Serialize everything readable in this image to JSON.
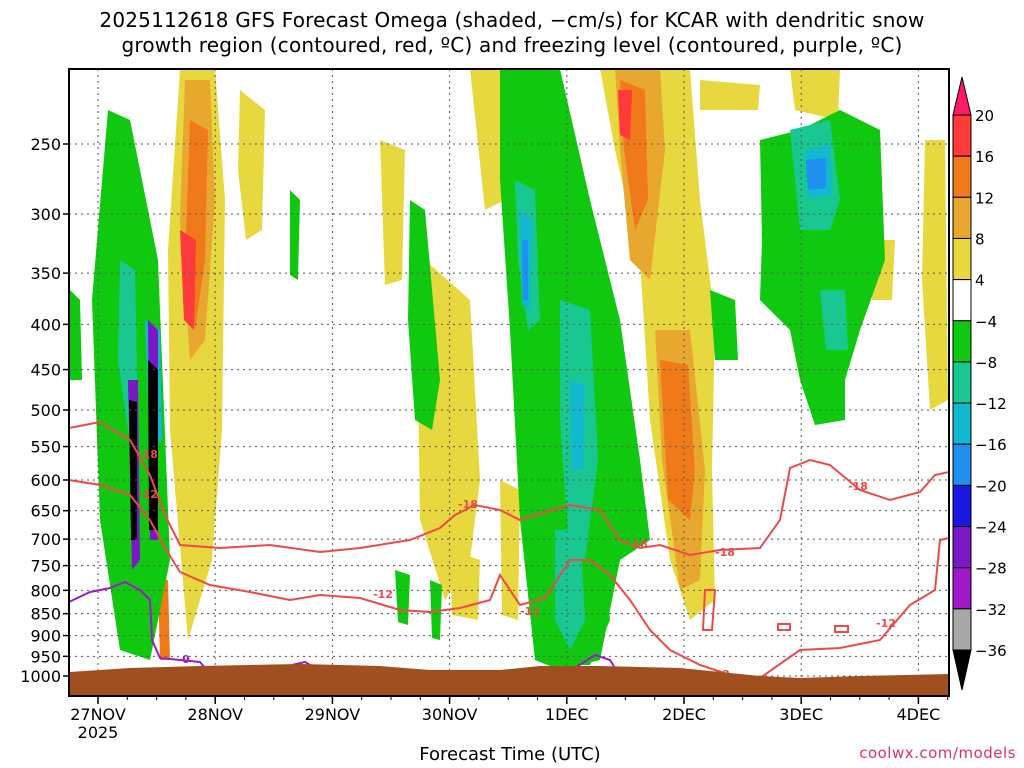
{
  "chart_data": {
    "type": "heatmap",
    "title_line1": "2025112618 GFS Forecast Omega (shaded, −cm/s) for KCAR with dendritic snow",
    "title_line2": "growth region (contoured, red, ºC) and freezing level (contoured, purple, ºC)",
    "xlabel": "Forecast Time (UTC)",
    "ylabel": "",
    "credit": "coolwx.com/models",
    "x_ticks": [
      "27NOV",
      "28NOV",
      "29NOV",
      "30NOV",
      "1DEC",
      "2DEC",
      "3DEC",
      "4DEC"
    ],
    "x_year": "2025",
    "y_ticks": [
      250,
      300,
      350,
      400,
      450,
      500,
      550,
      600,
      650,
      700,
      750,
      800,
      850,
      900,
      950,
      1000
    ],
    "y_range_hPa": [
      200,
      1030
    ],
    "y_log_scale": true,
    "grid": true,
    "colorbar": {
      "labels": [
        "20",
        "16",
        "12",
        "8",
        "4",
        "−4",
        "−8",
        "−12",
        "−16",
        "−20",
        "−24",
        "−28",
        "−32",
        "−36"
      ],
      "colors": [
        "#ff1a66",
        "#ff3a3a",
        "#f07a1a",
        "#e8a830",
        "#e8d840",
        "#ffffff",
        "#10c810",
        "#18c890",
        "#12b8d0",
        "#1e90f0",
        "#1818e0",
        "#7a18c8",
        "#a018c8",
        "#a8a8a8",
        "#000000"
      ]
    },
    "contour_labels": {
      "dgz": [
        "-18",
        "-12"
      ],
      "freezing": "0"
    },
    "colors": {
      "dgz_contour": "#f04848",
      "freezing_contour": "#a018c8",
      "terrain": "#a05020"
    }
  }
}
